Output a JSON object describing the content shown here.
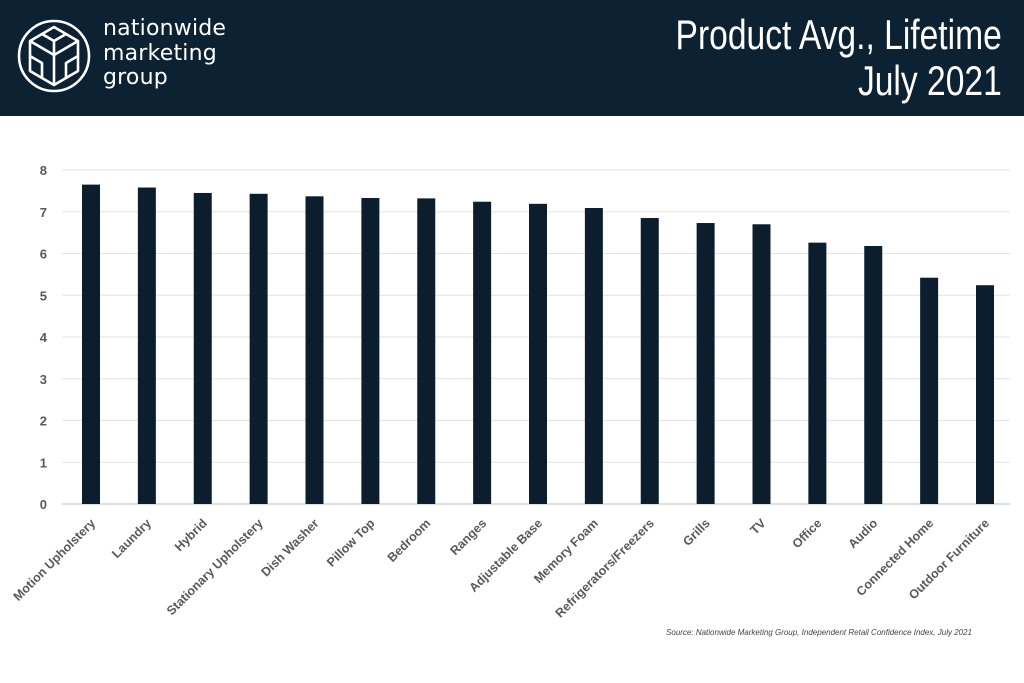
{
  "brand": {
    "line1": "nationwide",
    "line2": "marketing",
    "line3": "group",
    "logo_icon": "geodesic-cube-icon"
  },
  "header": {
    "title_line1": "Product Avg., Lifetime",
    "title_line2": "July 2021",
    "background": "#0c2233"
  },
  "footer": {
    "source": "Source: Nationwide Marketing Group, Independent Retail Confidence Index, July 2021"
  },
  "chart_data": {
    "type": "bar",
    "categories": [
      "Motion Upholstery",
      "Laundry",
      "Hybrid",
      "Stationary Upholstery",
      "Dish Washer",
      "Pillow Top",
      "Bedroom",
      "Ranges",
      "Adjustable Base",
      "Memory Foam",
      "Refrigerators/Freezers",
      "Grills",
      "TV",
      "Office",
      "Audio",
      "Connected Home",
      "Outdoor Furniture"
    ],
    "values": [
      7.65,
      7.58,
      7.45,
      7.43,
      7.37,
      7.33,
      7.32,
      7.24,
      7.19,
      7.09,
      6.85,
      6.73,
      6.7,
      6.26,
      6.18,
      5.42,
      5.24
    ],
    "ylim": [
      0,
      8
    ],
    "yticks": [
      "0",
      "1",
      "2",
      "3",
      "4",
      "5",
      "6",
      "7",
      "8"
    ],
    "grid": true,
    "legend": "none",
    "bar_color": "#0c1e2e"
  }
}
